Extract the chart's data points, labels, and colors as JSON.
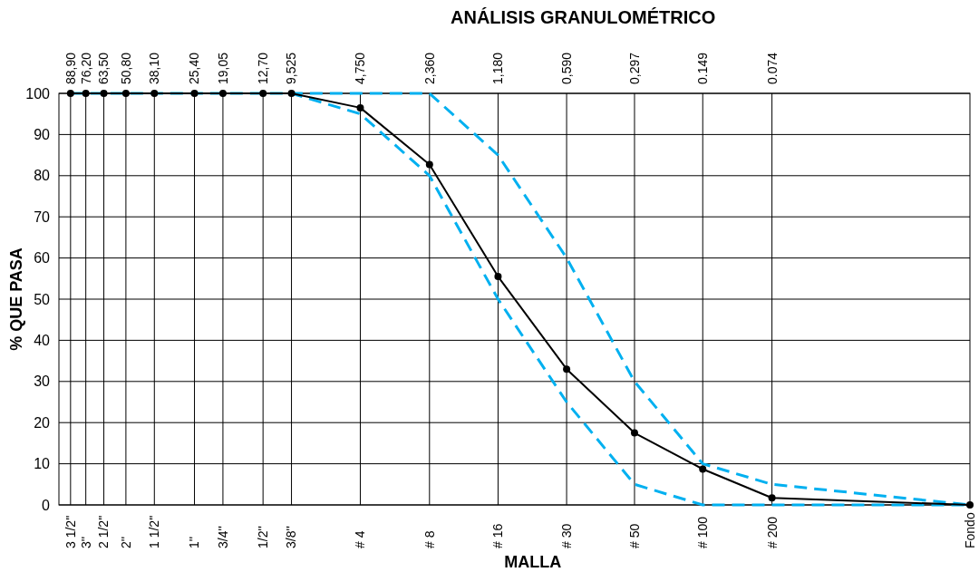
{
  "chart_data": {
    "type": "line",
    "title": "ANÁLISIS GRANULOMÉTRICO",
    "xlabel": "MALLA",
    "ylabel": "% QUE PASA",
    "log": "x",
    "grid": true,
    "xlim": [
      100,
      0.01
    ],
    "ylim": [
      0,
      100
    ],
    "yticks": [
      0,
      10,
      20,
      30,
      40,
      50,
      60,
      70,
      80,
      90,
      100
    ],
    "xticks": [
      {
        "value": 88.9,
        "label": "88,90"
      },
      {
        "value": 76.2,
        "label": "76,20"
      },
      {
        "value": 63.5,
        "label": "63,50"
      },
      {
        "value": 50.8,
        "label": "50,80"
      },
      {
        "value": 38.1,
        "label": "38,10"
      },
      {
        "value": 25.4,
        "label": "25,40"
      },
      {
        "value": 19.05,
        "label": "19,05"
      },
      {
        "value": 12.7,
        "label": "12,70"
      },
      {
        "value": 9.525,
        "label": "9,525"
      },
      {
        "value": 4.75,
        "label": "4,750"
      },
      {
        "value": 2.36,
        "label": "2,360"
      },
      {
        "value": 1.18,
        "label": "1,180"
      },
      {
        "value": 0.59,
        "label": "0,590"
      },
      {
        "value": 0.297,
        "label": "0,297"
      },
      0.149,
      0.074
    ],
    "annotations": [
      "3 1/2''",
      "3''",
      "2 1/2''",
      "2''",
      "1 1/2''",
      "1''",
      "3/4''",
      "1/2''",
      "3/8''",
      "# 4",
      "# 8",
      "# 16",
      "# 30",
      "# 50",
      "# 100",
      "# 200",
      "Fondo"
    ],
    "series": [
      {
        "color": "#00b0f0",
        "line_style": "dashed",
        "marker": "none",
        "x": [
          88.9,
          9.525,
          4.75,
          2.36,
          1.18,
          0.59,
          0.297,
          0.149,
          0.074,
          0.01,
          0.074,
          88.9,
          9.525,
          4.75,
          2.36,
          1.18,
          0.59,
          0.297,
          0.149,
          0.074,
          0.01
        ],
        "values": [
          100,
          100,
          100,
          100,
          85,
          60,
          30,
          10,
          5,
          0,
          null,
          100,
          100,
          95,
          80,
          50,
          25,
          5,
          0,
          0,
          0
        ]
      },
      {
        "color": "#000000",
        "line_style": "solid",
        "marker": "circle",
        "x": [
          88.9,
          76.2,
          63.5,
          50.8,
          38.1,
          25.4,
          19.05,
          12.7,
          9.525,
          4.75,
          2.36,
          1.18,
          0.59,
          0.297,
          0.149,
          0.074,
          0.01
        ],
        "values": [
          100,
          100,
          100,
          100,
          100,
          100,
          100,
          100,
          100,
          96.5,
          82.7,
          55.5,
          33,
          17.5,
          8.7,
          1.7,
          0
        ]
      }
    ]
  }
}
